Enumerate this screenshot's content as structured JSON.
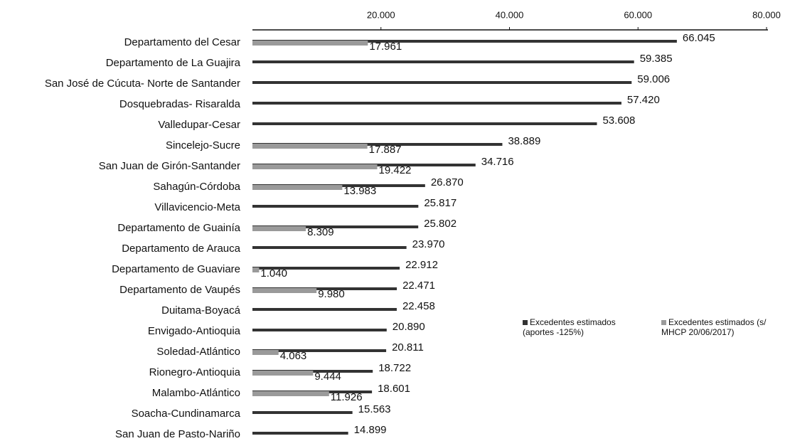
{
  "chart_data": {
    "type": "bar",
    "orientation": "horizontal",
    "categories": [
      "Departamento del Cesar",
      "Departamento de La Guajira",
      "San José de Cúcuta- Norte de Santander",
      "Dosquebradas- Risaralda",
      "Valledupar-Cesar",
      "Sincelejo-Sucre",
      "San Juan de Girón-Santander",
      "Sahagún-Córdoba",
      "Villavicencio-Meta",
      "Departamento de Guainía",
      "Departamento de Arauca",
      "Departamento de Guaviare",
      "Departamento de Vaupés",
      "Duitama-Boyacá",
      "Envigado-Antioquia",
      "Soledad-Atlántico",
      "Rionegro-Antioquia",
      "Malambo-Atlántico",
      "Soacha-Cundinamarca",
      "San Juan de Pasto-Nariño"
    ],
    "series": [
      {
        "name": "Excedentes estimados (aportes -125%)",
        "color": "#333333",
        "values": [
          66045,
          59385,
          59006,
          57420,
          53608,
          38889,
          34716,
          26870,
          25817,
          25802,
          23970,
          22912,
          22471,
          22458,
          20890,
          20811,
          18722,
          18601,
          15563,
          14899
        ],
        "value_labels": [
          "66.045",
          "59.385",
          "59.006",
          "57.420",
          "53.608",
          "38.889",
          "34.716",
          "26.870",
          "25.817",
          "25.802",
          "23.970",
          "22.912",
          "22.471",
          "22.458",
          "20.890",
          "20.811",
          "18.722",
          "18.601",
          "15.563",
          "14.899"
        ]
      },
      {
        "name": "Excedentes estimados (s/ MHCP 20/06/2017)",
        "color": "#9a9a9a",
        "values": [
          17961,
          null,
          null,
          null,
          null,
          17887,
          19422,
          13983,
          null,
          8309,
          null,
          1040,
          9980,
          null,
          null,
          4063,
          9444,
          11926,
          null,
          null
        ],
        "value_labels": [
          "17.961",
          null,
          null,
          null,
          null,
          "17.887",
          "19.422",
          "13.983",
          null,
          "8.309",
          null,
          "1.040",
          "9.980",
          null,
          null,
          "4.063",
          "9.444",
          "11.926",
          null,
          null
        ]
      }
    ],
    "xlim": [
      0,
      80000
    ],
    "xticks": [
      {
        "value": 20000,
        "label": "20.000"
      },
      {
        "value": 40000,
        "label": "40.000"
      },
      {
        "value": 60000,
        "label": "60.000"
      },
      {
        "value": 80000,
        "label": "80.000"
      }
    ]
  }
}
